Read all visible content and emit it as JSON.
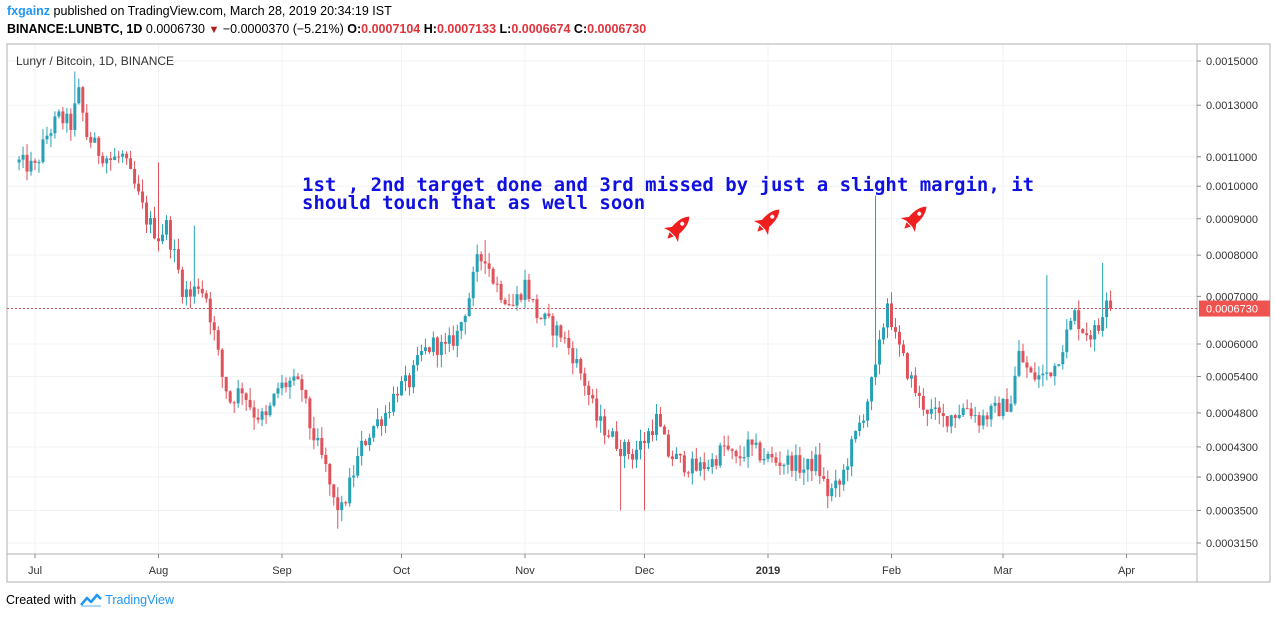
{
  "header": {
    "user": "fxgainz",
    "published_text": "published on TradingView.com, March 28, 2019 20:34:19 IST",
    "symbol": "BINANCE:LUNBTC, 1D",
    "last": "0.0006730",
    "change": "−0.0000370 (−5.21%)",
    "open_label": "O:",
    "open": "0.0007104",
    "high_label": "H:",
    "high": "0.0007133",
    "low_label": "L:",
    "low": "0.0006674",
    "close_label": "C:",
    "close": "0.0006730"
  },
  "footer": {
    "created_with": "Created with",
    "brand": "TradingView"
  },
  "colors": {
    "up": "#26a1b5",
    "down": "#e0515a",
    "price_tag": "#ef5350",
    "annotation": "#1010e0",
    "rocket": "#f01e1e"
  },
  "icons": [
    "rocket-icon",
    "tradingview-logo-icon",
    "triangle-down-icon"
  ],
  "chart_data": {
    "type": "candlestick",
    "title": "Lunyr / Bitcoin, 1D, BINANCE",
    "y_scale": "log",
    "ylim": [
      0.0003,
      0.0016
    ],
    "y_ticks": [
      "0.0015000",
      "0.0013000",
      "0.0011000",
      "0.0010000",
      "0.0009000",
      "0.0008000",
      "0.0007000",
      "0.0006000",
      "0.0005400",
      "0.0004800",
      "0.0004300",
      "0.0003900",
      "0.0003500",
      "0.0003150"
    ],
    "x_ticks": [
      "Jul",
      "Aug",
      "Sep",
      "Oct",
      "Nov",
      "Dec",
      "2019",
      "Feb",
      "Mar",
      "Apr"
    ],
    "last_price_label": "0.0006730",
    "annotation": [
      "1st , 2nd target done and 3rd missed by just a slight margin, it",
      "should touch that as well soon"
    ],
    "rockets": 3,
    "closes": [
      [
        "2018-06-27",
        0.00108
      ],
      [
        "2018-07-01",
        0.00106
      ],
      [
        "2018-07-04",
        0.00118
      ],
      [
        "2018-07-07",
        0.00125
      ],
      [
        "2018-07-10",
        0.00122
      ],
      [
        "2018-07-12",
        0.00135
      ],
      [
        "2018-07-14",
        0.00118
      ],
      [
        "2018-07-17",
        0.00112
      ],
      [
        "2018-07-20",
        0.00109
      ],
      [
        "2018-07-23",
        0.0011
      ],
      [
        "2018-07-26",
        0.001
      ],
      [
        "2018-07-29",
        0.0009
      ],
      [
        "2018-08-01",
        0.00085
      ],
      [
        "2018-08-03",
        0.00088
      ],
      [
        "2018-08-05",
        0.0008
      ],
      [
        "2018-08-07",
        0.00072
      ],
      [
        "2018-08-09",
        0.0007
      ],
      [
        "2018-08-11",
        0.00073
      ],
      [
        "2018-08-13",
        0.0007
      ],
      [
        "2018-08-15",
        0.00062
      ],
      [
        "2018-08-17",
        0.00054
      ],
      [
        "2018-08-19",
        0.0005
      ],
      [
        "2018-08-22",
        0.00052
      ],
      [
        "2018-08-25",
        0.00048
      ],
      [
        "2018-08-28",
        0.00047
      ],
      [
        "2018-08-31",
        0.00052
      ],
      [
        "2018-09-03",
        0.00053
      ],
      [
        "2018-09-06",
        0.00052
      ],
      [
        "2018-09-08",
        0.00046
      ],
      [
        "2018-09-10",
        0.00043
      ],
      [
        "2018-09-12",
        0.0004
      ],
      [
        "2018-09-14",
        0.00036
      ],
      [
        "2018-09-16",
        0.00035
      ],
      [
        "2018-09-18",
        0.00038
      ],
      [
        "2018-09-21",
        0.00043
      ],
      [
        "2018-09-24",
        0.00046
      ],
      [
        "2018-09-27",
        0.00048
      ],
      [
        "2018-09-30",
        0.00052
      ],
      [
        "2018-10-03",
        0.00053
      ],
      [
        "2018-10-06",
        0.00058
      ],
      [
        "2018-10-09",
        0.0006
      ],
      [
        "2018-10-12",
        0.00059
      ],
      [
        "2018-10-15",
        0.00062
      ],
      [
        "2018-10-18",
        0.0007
      ],
      [
        "2018-10-20",
        0.00078
      ],
      [
        "2018-10-22",
        0.0008
      ],
      [
        "2018-10-24",
        0.00074
      ],
      [
        "2018-10-26",
        0.00071
      ],
      [
        "2018-10-29",
        0.00068
      ],
      [
        "2018-11-01",
        0.00073
      ],
      [
        "2018-11-04",
        0.00066
      ],
      [
        "2018-11-07",
        0.00064
      ],
      [
        "2018-11-10",
        0.00062
      ],
      [
        "2018-11-13",
        0.00058
      ],
      [
        "2018-11-16",
        0.00053
      ],
      [
        "2018-11-19",
        0.00047
      ],
      [
        "2018-11-22",
        0.00045
      ],
      [
        "2018-11-25",
        0.00043
      ],
      [
        "2018-11-28",
        0.00042
      ],
      [
        "2018-12-01",
        0.00044
      ],
      [
        "2018-12-04",
        0.00047
      ],
      [
        "2018-12-07",
        0.00042
      ],
      [
        "2018-12-10",
        0.00041
      ],
      [
        "2018-12-14",
        0.0004
      ],
      [
        "2018-12-18",
        0.00041
      ],
      [
        "2018-12-21",
        0.00043
      ],
      [
        "2018-12-24",
        0.00041
      ],
      [
        "2018-12-27",
        0.00043
      ],
      [
        "2018-12-30",
        0.00042
      ],
      [
        "2019-01-03",
        0.00041
      ],
      [
        "2019-01-07",
        0.00041
      ],
      [
        "2019-01-10",
        0.0004
      ],
      [
        "2019-01-13",
        0.00041
      ],
      [
        "2019-01-16",
        0.00037
      ],
      [
        "2019-01-19",
        0.00038
      ],
      [
        "2019-01-22",
        0.00043
      ],
      [
        "2019-01-25",
        0.00048
      ],
      [
        "2019-01-28",
        0.00055
      ],
      [
        "2019-01-31",
        0.00069
      ],
      [
        "2019-02-02",
        0.00061
      ],
      [
        "2019-02-05",
        0.00055
      ],
      [
        "2019-02-08",
        0.0005
      ],
      [
        "2019-02-11",
        0.00048
      ],
      [
        "2019-02-14",
        0.00047
      ],
      [
        "2019-02-17",
        0.00048
      ],
      [
        "2019-02-20",
        0.00049
      ],
      [
        "2019-02-23",
        0.00047
      ],
      [
        "2019-02-26",
        0.00048
      ],
      [
        "2019-03-01",
        0.00049
      ],
      [
        "2019-03-03",
        0.0005
      ],
      [
        "2019-03-05",
        0.00058
      ],
      [
        "2019-03-08",
        0.00054
      ],
      [
        "2019-03-11",
        0.00054
      ],
      [
        "2019-03-14",
        0.00056
      ],
      [
        "2019-03-17",
        0.00062
      ],
      [
        "2019-03-19",
        0.00066
      ],
      [
        "2019-03-21",
        0.00063
      ],
      [
        "2019-03-23",
        0.00062
      ],
      [
        "2019-03-25",
        0.00063
      ],
      [
        "2019-03-27",
        0.00071
      ],
      [
        "2019-03-28",
        0.000673
      ]
    ]
  }
}
